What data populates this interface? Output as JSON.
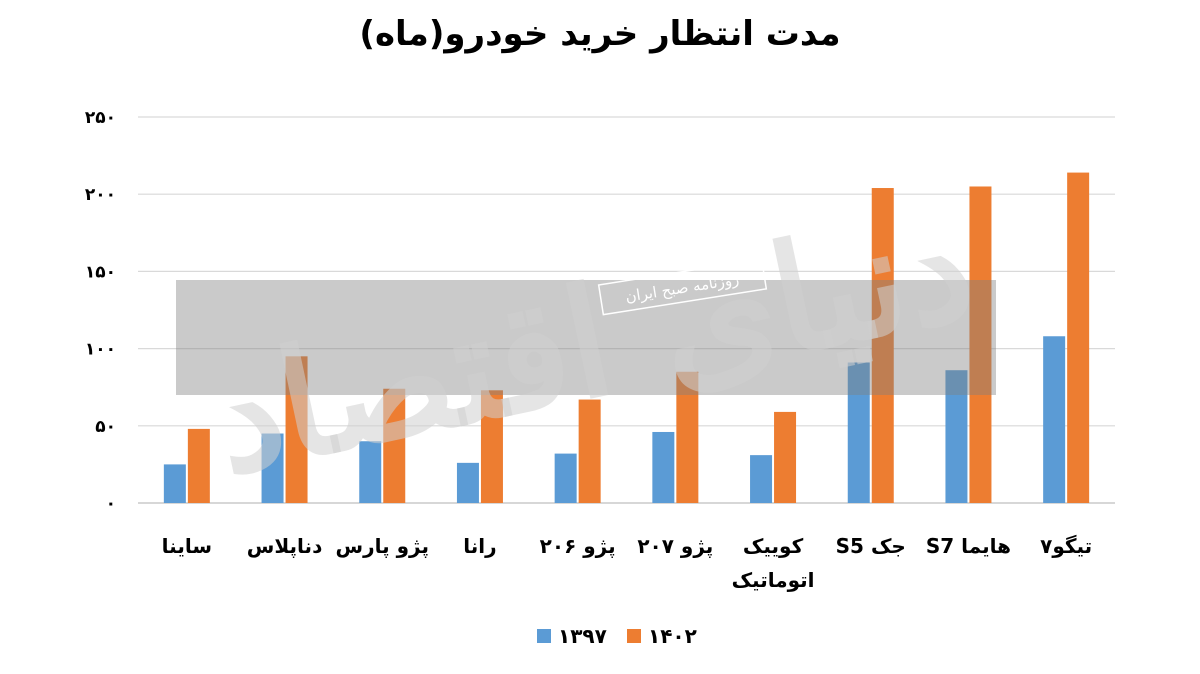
{
  "chart_data": {
    "type": "bar",
    "title": "مدت انتظار خرید خودرو(ماه)",
    "categories": [
      "ساینا",
      "دناپلاس",
      "پژو پارس",
      "رانا",
      "پژو ۲۰۶",
      "پژو ۲۰۷",
      "کوییک اتوماتیک",
      "جک S5",
      "هایما S7",
      "تیگو۷"
    ],
    "y_tick_labels": [
      "۰",
      "۵۰",
      "۱۰۰",
      "۱۵۰",
      "۲۰۰",
      "۲۵۰"
    ],
    "ylim": [
      0,
      250
    ],
    "grid": true,
    "legend_position": "bottom-center",
    "series": [
      {
        "name": "۱۳۹۷",
        "color": "#5B9BD5",
        "values": [
          25,
          45,
          40,
          26,
          32,
          46,
          31,
          91,
          86,
          108
        ]
      },
      {
        "name": "۱۴۰۲",
        "color": "#ED7D31",
        "values": [
          48,
          95,
          74,
          73,
          67,
          85,
          59,
          204,
          205,
          214
        ]
      }
    ]
  },
  "watermark": {
    "main": "دنیای اقتصاد",
    "sub": "روزنامه صبح ایران"
  }
}
